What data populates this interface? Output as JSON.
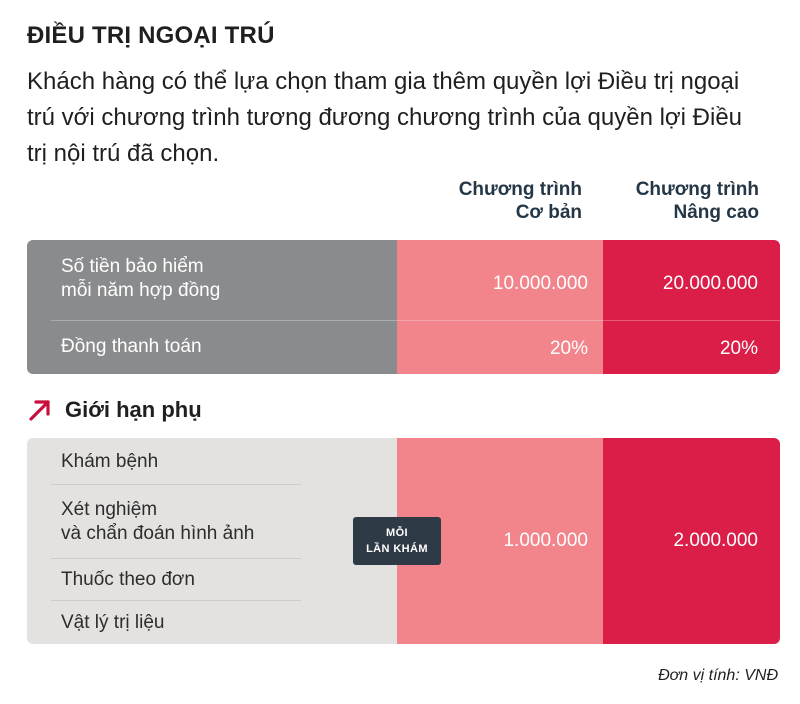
{
  "title": "ĐIỀU TRỊ NGOẠI TRÚ",
  "intro": "Khách hàng có thể lựa chọn tham gia thêm quyền lợi Điều trị ngoại trú với chương trình tương đương chương trình của quyền lợi Điều trị nội trú đã chọn.",
  "columns": {
    "basic": {
      "line1": "Chương trình",
      "line2": "Cơ bản"
    },
    "advanced": {
      "line1": "Chương trình",
      "line2": "Nâng cao"
    }
  },
  "main_table": {
    "rows": [
      {
        "label_line1": "Số tiền bảo hiểm",
        "label_line2": "mỗi năm hợp đồng",
        "basic": "10.000.000",
        "advanced": "20.000.000"
      },
      {
        "label": "Đồng thanh toán",
        "basic": "20%",
        "advanced": "20%"
      }
    ]
  },
  "sub_limits": {
    "heading": "Giới hạn phụ",
    "items": [
      "Khám bệnh",
      "Xét nghiệm",
      "và chẩn đoán hình ảnh",
      "Thuốc theo đơn",
      "Vật lý trị liệu"
    ],
    "badge": {
      "line1": "MỖI",
      "line2": "LẦN KHÁM"
    },
    "basic": "1.000.000",
    "advanced": "2.000.000"
  },
  "footnote": "Đơn vị tính: VNĐ",
  "colors": {
    "basic": "#f2848c",
    "advanced": "#da1e48",
    "label_dark": "#8a8b8d",
    "label_light": "#e4e2e0",
    "arrow": "#c8103e"
  },
  "icons": {
    "sub_heading": "arrow-up-right-icon"
  }
}
